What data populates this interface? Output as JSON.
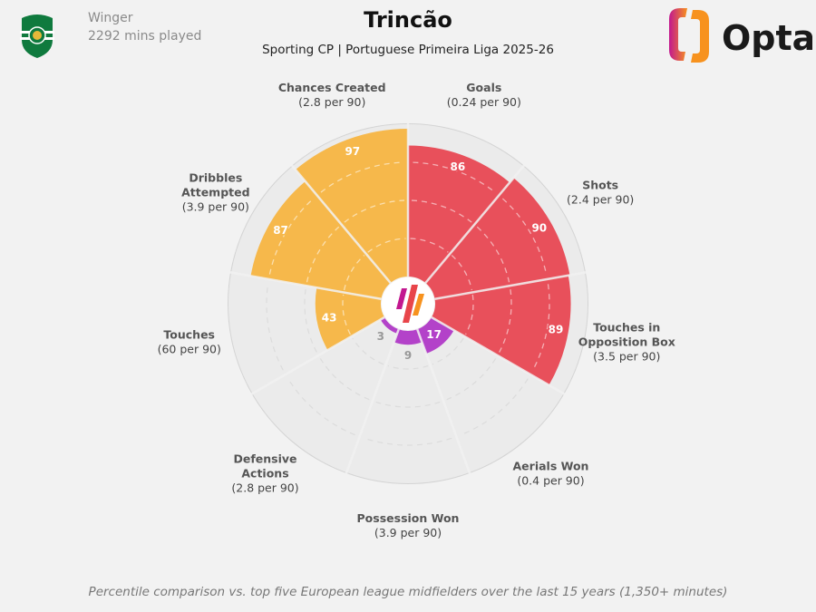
{
  "header": {
    "title": "Trincão",
    "subtitle": "Sporting CP | Portuguese Primeira Liga 2025-26",
    "position": "Winger",
    "minutes": "2292 mins played",
    "club_crest": "sporting-cp-crest",
    "brand": "Opta"
  },
  "footnote": "Percentile comparison vs. top five European league midfielders over the last 15 years (1,350+ minutes)",
  "colors": {
    "attacking": "#e8505b",
    "possession": "#f6b84b",
    "defending": "#b342c9",
    "empty": "#ebebeb",
    "background": "#f2f2f2"
  },
  "chart_data": {
    "type": "pie",
    "subtype": "polar-area percentile",
    "rlim": [
      0,
      100
    ],
    "grid": "dashed rings at 25, 50, 75",
    "series": [
      {
        "label": "Goals",
        "sub": "(0.24 per 90)",
        "value": 86,
        "group": "attacking"
      },
      {
        "label": "Shots",
        "sub": "(2.4 per 90)",
        "value": 90,
        "group": "attacking"
      },
      {
        "label": "Touches in Opposition Box",
        "lines": [
          "Touches in",
          "Opposition Box"
        ],
        "sub": "(3.5 per 90)",
        "value": 89,
        "group": "attacking"
      },
      {
        "label": "Aerials Won",
        "sub": "(0.4 per 90)",
        "value": 17,
        "group": "defending"
      },
      {
        "label": "Possession Won",
        "sub": "(3.9 per 90)",
        "value": 9,
        "group": "defending"
      },
      {
        "label": "Defensive Actions",
        "lines": [
          "Defensive",
          "Actions"
        ],
        "sub": "(2.8 per 90)",
        "value": 3,
        "group": "defending"
      },
      {
        "label": "Touches",
        "sub": "(60 per 90)",
        "value": 43,
        "group": "possession"
      },
      {
        "label": "Dribbles Attempted",
        "lines": [
          "Dribbles",
          "Attempted"
        ],
        "sub": "(3.9 per 90)",
        "value": 87,
        "group": "possession"
      },
      {
        "label": "Chances Created",
        "sub": "(2.8 per 90)",
        "value": 97,
        "group": "possession"
      }
    ]
  }
}
